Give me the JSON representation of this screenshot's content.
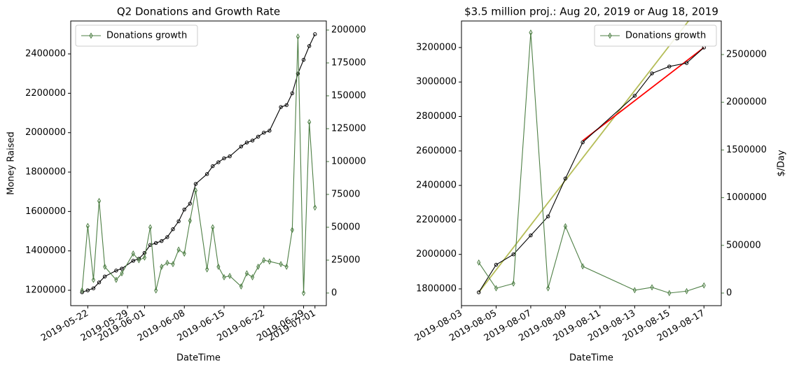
{
  "chart_data": [
    {
      "type": "line",
      "title": "Q2 Donations and Growth Rate",
      "xlabel": "DateTime",
      "ylabel": "Money Raised",
      "x": [
        "2019-05-21",
        "2019-05-22",
        "2019-05-23",
        "2019-05-24",
        "2019-05-25",
        "2019-05-27",
        "2019-05-28",
        "2019-05-30",
        "2019-05-31",
        "2019-06-01",
        "2019-06-02",
        "2019-06-03",
        "2019-06-04",
        "2019-06-05",
        "2019-06-06",
        "2019-06-07",
        "2019-06-08",
        "2019-06-09",
        "2019-06-10",
        "2019-06-12",
        "2019-06-13",
        "2019-06-14",
        "2019-06-15",
        "2019-06-16",
        "2019-06-18",
        "2019-06-19",
        "2019-06-20",
        "2019-06-21",
        "2019-06-22",
        "2019-06-23",
        "2019-06-25",
        "2019-06-26",
        "2019-06-27",
        "2019-06-28",
        "2019-06-29",
        "2019-06-30",
        "2019-07-01"
      ],
      "series": [
        {
          "color": "#000000",
          "values": [
            1190000,
            1200000,
            1210000,
            1240000,
            1270000,
            1300000,
            1310000,
            1350000,
            1360000,
            1390000,
            1430000,
            1440000,
            1450000,
            1470000,
            1510000,
            1550000,
            1610000,
            1640000,
            1740000,
            1790000,
            1830000,
            1850000,
            1870000,
            1880000,
            1930000,
            1950000,
            1960000,
            1980000,
            2000000,
            2010000,
            2130000,
            2140000,
            2200000,
            2300000,
            2370000,
            2440000,
            2500000
          ]
        },
        {
          "name": "Donations growth",
          "color": "#4e7f45",
          "axis": "y2",
          "values": [
            2000,
            51000,
            10000,
            70000,
            20000,
            10000,
            15000,
            30000,
            25000,
            27000,
            50000,
            2000,
            20000,
            23000,
            22000,
            33000,
            30000,
            55000,
            78000,
            18000,
            50000,
            20000,
            12000,
            13000,
            5000,
            15000,
            12000,
            20000,
            25000,
            24000,
            22000,
            20000,
            48000,
            195000,
            0,
            130000,
            65000
          ]
        }
      ],
      "xlim": [
        "2019-05-19",
        "2019-07-03"
      ],
      "xticks": [
        "2019-05-22",
        "2019-05-29",
        "2019-06-01",
        "2019-06-08",
        "2019-06-15",
        "2019-06-22",
        "2019-06-29",
        "2019-07-01"
      ],
      "ylim": [
        1122000,
        2567000
      ],
      "yticks": [
        1200000,
        1400000,
        1600000,
        1800000,
        2000000,
        2200000,
        2400000
      ],
      "y2lim": [
        -9600,
        206900
      ],
      "y2ticks": [
        0,
        25000,
        50000,
        75000,
        100000,
        125000,
        150000,
        175000,
        200000
      ],
      "legend": "upper left"
    },
    {
      "type": "line",
      "title": "$3.5 million proj.: Aug 20, 2019 or Aug 18, 2019",
      "xlabel": "DateTime",
      "y2label": "$/Day",
      "x": [
        "2019-08-04",
        "2019-08-05",
        "2019-08-06",
        "2019-08-07",
        "2019-08-08",
        "2019-08-09",
        "2019-08-10",
        "2019-08-13",
        "2019-08-14",
        "2019-08-15",
        "2019-08-16",
        "2019-08-17"
      ],
      "series": [
        {
          "color": "#000000",
          "values": [
            1780000,
            1940000,
            2000000,
            2110000,
            2220000,
            2440000,
            2650000,
            2920000,
            3050000,
            3090000,
            3110000,
            3200000
          ]
        },
        {
          "name": "Donations growth",
          "color": "#4e7f45",
          "axis": "y2",
          "values": [
            320000,
            50000,
            100000,
            2730000,
            50000,
            700000,
            280000,
            30000,
            60000,
            0,
            20000,
            80000
          ]
        }
      ],
      "trend_lines": [
        {
          "color": "#b5bd57",
          "x": [
            "2019-08-04",
            "2019-08-18"
          ],
          "values": [
            1780000,
            3600000
          ]
        },
        {
          "color": "#ff0000",
          "x": [
            "2019-08-10",
            "2019-08-17"
          ],
          "values": [
            2660000,
            3200000
          ]
        }
      ],
      "xlim": [
        "2019-08-03",
        "2019-08-18"
      ],
      "xticks": [
        "2019-08-03",
        "2019-08-05",
        "2019-08-07",
        "2019-08-09",
        "2019-08-11",
        "2019-08-13",
        "2019-08-15",
        "2019-08-17"
      ],
      "ylim": [
        1702600,
        3354000
      ],
      "yticks": [
        1800000,
        2000000,
        2200000,
        2400000,
        2600000,
        2800000,
        3000000,
        3200000
      ],
      "y2lim": [
        -132000,
        2852000
      ],
      "y2ticks": [
        0,
        500000,
        1000000,
        1500000,
        2000000,
        2500000
      ],
      "legend": "upper right"
    }
  ]
}
